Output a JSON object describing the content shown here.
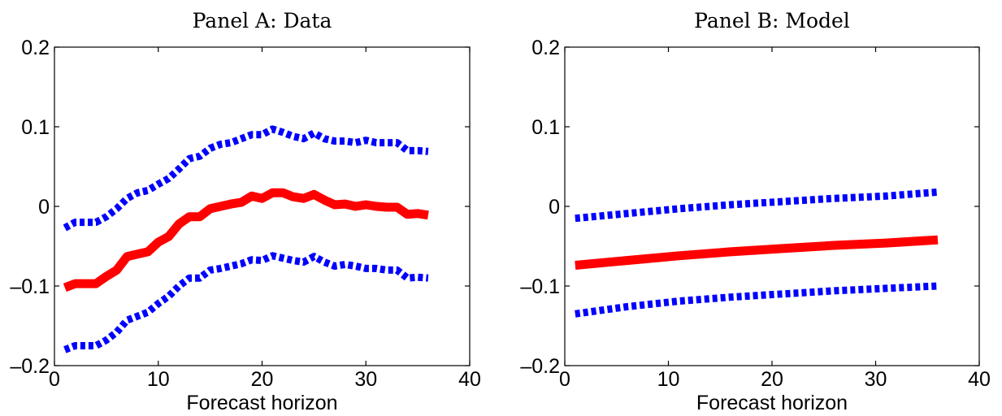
{
  "chart_data": [
    {
      "type": "line",
      "title": "Panel A: Data",
      "xlabel": "Forecast horizon",
      "ylabel": "",
      "xlim": [
        0,
        40
      ],
      "ylim": [
        -0.2,
        0.2
      ],
      "xticks": [
        0,
        10,
        20,
        30,
        40
      ],
      "yticks": [
        -0.2,
        -0.1,
        0,
        0.1,
        0.2
      ],
      "ytick_labels": [
        "–0.2",
        "–0.1",
        "0",
        "0.1",
        "0.2"
      ],
      "xtick_labels": [
        "0",
        "10",
        "20",
        "30",
        "40"
      ],
      "x": [
        1,
        2,
        3,
        4,
        5,
        6,
        7,
        8,
        9,
        10,
        11,
        12,
        13,
        14,
        15,
        16,
        17,
        18,
        19,
        20,
        21,
        22,
        23,
        24,
        25,
        26,
        27,
        28,
        29,
        30,
        31,
        32,
        33,
        34,
        35,
        36
      ],
      "series": [
        {
          "color": "#0000ff",
          "style": "dotted",
          "values": [
            -0.027,
            -0.02,
            -0.02,
            -0.02,
            -0.013,
            -0.003,
            0.01,
            0.017,
            0.02,
            0.028,
            0.035,
            0.047,
            0.06,
            0.063,
            0.073,
            0.078,
            0.08,
            0.085,
            0.09,
            0.09,
            0.097,
            0.093,
            0.088,
            0.085,
            0.092,
            0.085,
            0.082,
            0.082,
            0.08,
            0.083,
            0.08,
            0.08,
            0.08,
            0.07,
            0.07,
            0.069
          ]
        },
        {
          "color": "#ff0000",
          "style": "solid",
          "values": [
            -0.102,
            -0.097,
            -0.097,
            -0.097,
            -0.088,
            -0.08,
            -0.063,
            -0.06,
            -0.057,
            -0.045,
            -0.038,
            -0.022,
            -0.013,
            -0.013,
            -0.003,
            0,
            0.003,
            0.005,
            0.013,
            0.01,
            0.017,
            0.017,
            0.012,
            0.01,
            0.015,
            0.008,
            0.002,
            0.003,
            0,
            0.002,
            0,
            -0.001,
            -0.001,
            -0.01,
            -0.009,
            -0.011
          ]
        },
        {
          "color": "#0000ff",
          "style": "dotted",
          "values": [
            -0.18,
            -0.175,
            -0.175,
            -0.175,
            -0.168,
            -0.158,
            -0.143,
            -0.138,
            -0.133,
            -0.122,
            -0.113,
            -0.1,
            -0.09,
            -0.09,
            -0.08,
            -0.078,
            -0.075,
            -0.072,
            -0.067,
            -0.068,
            -0.062,
            -0.065,
            -0.068,
            -0.07,
            -0.063,
            -0.07,
            -0.075,
            -0.073,
            -0.075,
            -0.078,
            -0.078,
            -0.08,
            -0.08,
            -0.09,
            -0.089,
            -0.09
          ]
        }
      ]
    },
    {
      "type": "line",
      "title": "Panel B: Model",
      "xlabel": "Forecast horizon",
      "ylabel": "",
      "xlim": [
        0,
        40
      ],
      "ylim": [
        -0.2,
        0.2
      ],
      "xticks": [
        0,
        10,
        20,
        30,
        40
      ],
      "yticks": [
        -0.2,
        -0.1,
        0,
        0.1,
        0.2
      ],
      "ytick_labels": [
        "–0.2",
        "–0.1",
        "0",
        "0.1",
        "0.2"
      ],
      "xtick_labels": [
        "0",
        "10",
        "20",
        "30",
        "40"
      ],
      "x": [
        1,
        6,
        11,
        16,
        21,
        26,
        31,
        36
      ],
      "series": [
        {
          "color": "#0000ff",
          "style": "dotted",
          "values": [
            -0.015,
            -0.009,
            -0.003,
            0.002,
            0.006,
            0.01,
            0.013,
            0.018
          ]
        },
        {
          "color": "#ff0000",
          "style": "solid",
          "values": [
            -0.074,
            -0.068,
            -0.062,
            -0.057,
            -0.053,
            -0.049,
            -0.046,
            -0.042
          ]
        },
        {
          "color": "#0000ff",
          "style": "dotted",
          "values": [
            -0.135,
            -0.126,
            -0.119,
            -0.114,
            -0.11,
            -0.106,
            -0.103,
            -0.1
          ]
        }
      ]
    }
  ]
}
